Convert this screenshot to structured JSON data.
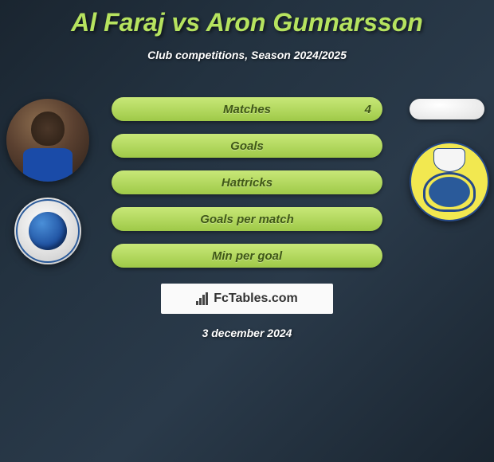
{
  "colors": {
    "accent": "#b6e35f",
    "pill_top": "#c8e878",
    "pill_bottom": "#9fc948",
    "pill_text": "#405818",
    "bg_dark": "#1a2530"
  },
  "header": {
    "title": "Al Faraj vs Aron Gunnarsson",
    "subtitle": "Club competitions, Season 2024/2025"
  },
  "stats": [
    {
      "label": "Matches",
      "right_value": "4"
    },
    {
      "label": "Goals",
      "right_value": ""
    },
    {
      "label": "Hattricks",
      "right_value": ""
    },
    {
      "label": "Goals per match",
      "right_value": ""
    },
    {
      "label": "Min per goal",
      "right_value": ""
    }
  ],
  "players": {
    "left": {
      "name": "Al Faraj",
      "club": "Al Hilal"
    },
    "right": {
      "name": "Aron Gunnarsson",
      "club": "Al Gharafa"
    }
  },
  "watermark": "FcTables.com",
  "date": "3 december 2024"
}
